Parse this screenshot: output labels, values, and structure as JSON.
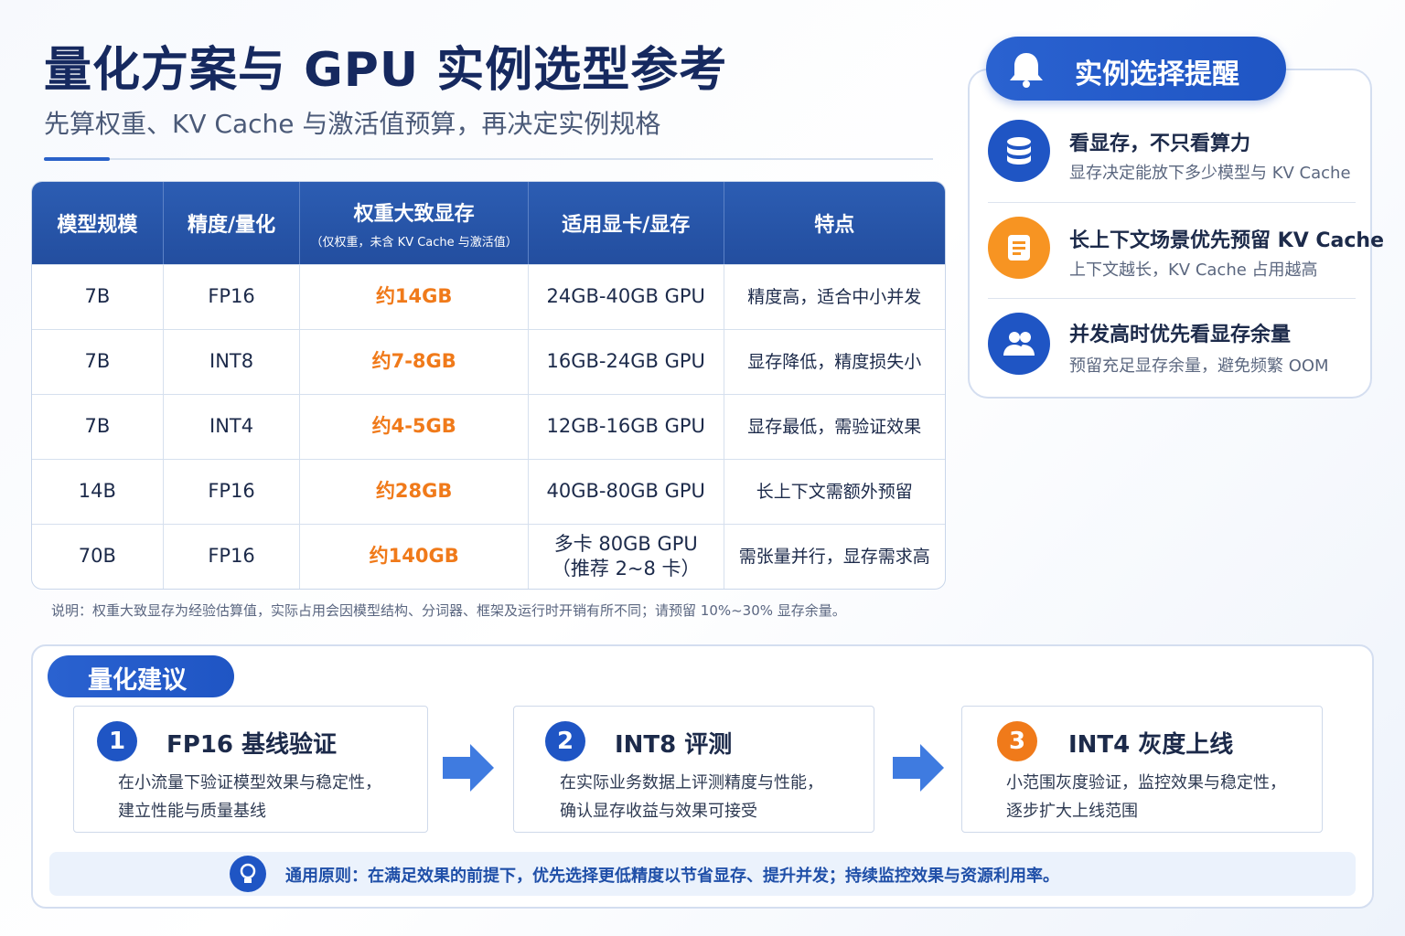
{
  "header": {
    "title": "量化方案与 GPU 实例选型参考",
    "subtitle": "先算权重、KV Cache 与激活值预算，再决定实例规格"
  },
  "table": {
    "columns": [
      "模型规模",
      "精度/量化",
      "权重大致显存",
      "适用显卡/显存",
      "特点"
    ],
    "weight_note": "（仅权重，未含 KV Cache 与激活值）",
    "rows": [
      [
        "7B",
        "FP16",
        "约14GB",
        "24GB-40GB GPU",
        "精度高，适合中小并发"
      ],
      [
        "7B",
        "INT8",
        "约7-8GB",
        "16GB-24GB GPU",
        "显存降低，精度损失小"
      ],
      [
        "7B",
        "INT4",
        "约4-5GB",
        "12GB-16GB GPU",
        "显存最低，需验证效果"
      ],
      [
        "14B",
        "FP16",
        "约28GB",
        "40GB-80GB GPU",
        "长上下文需额外预留"
      ],
      [
        "70B",
        "FP16",
        "约140GB",
        "多卡 80GB GPU\n（推荐 2~8 卡）",
        "需张量并行，显存需求高"
      ]
    ],
    "note": "说明：权重大致显存为经验估算值，实际占用会因模型结构、分词器、框架及运行时开销有所不同；请预留 10%~30% 显存余量。"
  },
  "reminder": {
    "title": "实例选择提醒",
    "items": [
      {
        "title": "看显存，不只看算力",
        "desc": "显存决定能放下多少模型与 KV Cache"
      },
      {
        "title": "长上下文场景优先预留 KV Cache",
        "desc": "上下文越长，KV Cache 占用越高"
      },
      {
        "title": "并发高时优先看显存余量",
        "desc": "预留充足显存余量，避免频繁 OOM"
      }
    ]
  },
  "advice": {
    "title": "量化建议",
    "steps": [
      {
        "number": "1",
        "title": "FP16 基线验证",
        "lines": [
          "在小流量下验证模型效果与稳定性，",
          "建立性能与质量基线"
        ]
      },
      {
        "number": "2",
        "title": "INT8 评测",
        "lines": [
          "在实际业务数据上评测精度与性能，",
          "确认显存收益与效果可接受"
        ]
      },
      {
        "number": "3",
        "title": "INT4 灰度上线",
        "lines": [
          "小范围灰度验证，监控效果与稳定性，",
          "逐步扩大上线范围"
        ]
      }
    ],
    "principle": "通用原则：在满足效果的前提下，优先选择更低精度以节省显存、提升并发；持续监控效果与资源利用率。"
  }
}
